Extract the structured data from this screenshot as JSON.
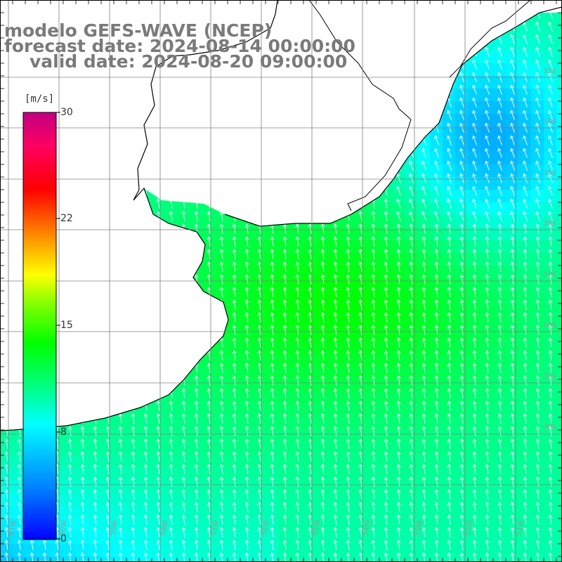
{
  "header": {
    "model": "modelo GEFS-WAVE (NCEP)",
    "forecast": "forecast date: 2024-08-14 00:00:00",
    "valid": "valid date: 2024-08-20 09:00:00"
  },
  "colorbar": {
    "unit": "[m/s]",
    "ticks": [
      {
        "label": "30",
        "value": 30
      },
      {
        "label": "22",
        "value": 22
      },
      {
        "label": "15",
        "value": 15
      },
      {
        "label": "8",
        "value": 8
      },
      {
        "label": "0",
        "value": 0
      }
    ],
    "range": [
      0,
      30
    ],
    "colors": [
      "#0000ff",
      "#0080ff",
      "#00ffff",
      "#00ff80",
      "#00ff00",
      "#80ff00",
      "#ffff00",
      "#ff8000",
      "#ff0000",
      "#ff0080",
      "#c80080"
    ]
  },
  "map": {
    "lat_labels": [
      "33S",
      "34S",
      "35S",
      "36S",
      "37S",
      "38S",
      "39S",
      "40S"
    ],
    "lon_labels": [
      "61W",
      "60W",
      "59W",
      "58W",
      "57W",
      "56W",
      "55W",
      "54W",
      "53W",
      "52W",
      "51W"
    ],
    "land_color": "#ffffff",
    "grid_color": "#808080",
    "arrow_color": "#ffffff",
    "wind_field": {
      "direction_deg_from": 190,
      "speed_min_ms": 7,
      "speed_max_ms": 13
    }
  }
}
